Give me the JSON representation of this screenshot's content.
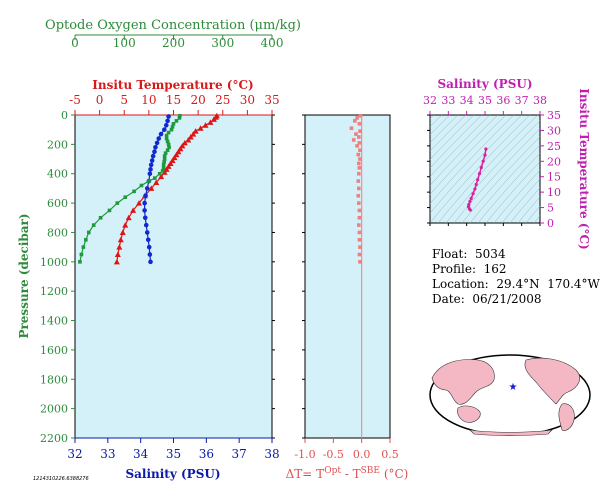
{
  "chart_data": [
    {
      "type": "line",
      "title": "",
      "ylabel": "Pressure (decibar)",
      "ylim": [
        2200,
        0
      ],
      "yticks": [
        0,
        200,
        400,
        600,
        800,
        1000,
        1200,
        1400,
        1600,
        1800,
        2000,
        2200
      ],
      "axes": {
        "oxygen": {
          "label": "Optode Oxygen Concentration (μm/kg)",
          "range": [
            0,
            400
          ],
          "ticks": [
            "0",
            "100",
            "200",
            "300",
            "400"
          ],
          "color": "#2e8b3c"
        },
        "temperature": {
          "label": "Insitu Temperature (°C)",
          "range": [
            -5,
            35
          ],
          "ticks": [
            "-5",
            "0",
            "5",
            "10",
            "15",
            "20",
            "25",
            "30",
            "35"
          ],
          "color": "#d41a1a"
        },
        "salinity": {
          "label": "Salinity (PSU)",
          "range": [
            32,
            38
          ],
          "ticks": [
            "32",
            "33",
            "34",
            "35",
            "36",
            "37",
            "38"
          ],
          "color": "#0a1aa8"
        }
      },
      "series": [
        {
          "name": "Temperature",
          "axis": "temperature",
          "color": "#e01414",
          "marker": "triangle",
          "points": [
            [
              23.8,
              5
            ],
            [
              23.6,
              15
            ],
            [
              23.2,
              30
            ],
            [
              22.5,
              50
            ],
            [
              21.5,
              70
            ],
            [
              20.5,
              90
            ],
            [
              19.5,
              110
            ],
            [
              19.0,
              130
            ],
            [
              18.5,
              150
            ],
            [
              18.0,
              170
            ],
            [
              17.3,
              190
            ],
            [
              16.8,
              210
            ],
            [
              16.4,
              230
            ],
            [
              16.0,
              250
            ],
            [
              15.6,
              270
            ],
            [
              15.2,
              290
            ],
            [
              14.8,
              310
            ],
            [
              14.4,
              330
            ],
            [
              14.0,
              350
            ],
            [
              13.6,
              370
            ],
            [
              13.2,
              390
            ],
            [
              12.5,
              420
            ],
            [
              11.5,
              460
            ],
            [
              10.5,
              500
            ],
            [
              9.2,
              550
            ],
            [
              8.0,
              600
            ],
            [
              6.8,
              650
            ],
            [
              5.9,
              700
            ],
            [
              5.2,
              750
            ],
            [
              4.7,
              800
            ],
            [
              4.3,
              850
            ],
            [
              4.0,
              900
            ],
            [
              3.7,
              950
            ],
            [
              3.5,
              1000
            ]
          ]
        },
        {
          "name": "Salinity",
          "axis": "salinity",
          "color": "#1428d0",
          "marker": "circle",
          "points": [
            [
              34.85,
              10
            ],
            [
              34.82,
              40
            ],
            [
              34.78,
              70
            ],
            [
              34.72,
              100
            ],
            [
              34.62,
              130
            ],
            [
              34.55,
              160
            ],
            [
              34.5,
              190
            ],
            [
              34.45,
              220
            ],
            [
              34.42,
              250
            ],
            [
              34.38,
              280
            ],
            [
              34.35,
              310
            ],
            [
              34.32,
              340
            ],
            [
              34.3,
              370
            ],
            [
              34.28,
              400
            ],
            [
              34.25,
              450
            ],
            [
              34.2,
              500
            ],
            [
              34.15,
              550
            ],
            [
              34.12,
              600
            ],
            [
              34.12,
              650
            ],
            [
              34.14,
              700
            ],
            [
              34.17,
              750
            ],
            [
              34.2,
              800
            ],
            [
              34.23,
              850
            ],
            [
              34.26,
              900
            ],
            [
              34.28,
              950
            ],
            [
              34.3,
              1000
            ]
          ]
        },
        {
          "name": "Oxygen",
          "axis": "oxygen",
          "color": "#1f9a3a",
          "marker": "square",
          "points": [
            [
              213,
              5
            ],
            [
              212,
              20
            ],
            [
              206,
              40
            ],
            [
              200,
              60
            ],
            [
              198,
              80
            ],
            [
              196,
              100
            ],
            [
              190,
              120
            ],
            [
              186,
              140
            ],
            [
              186,
              160
            ],
            [
              188,
              180
            ],
            [
              190,
              200
            ],
            [
              191,
              220
            ],
            [
              188,
              240
            ],
            [
              184,
              260
            ],
            [
              182,
              280
            ],
            [
              182,
              300
            ],
            [
              181,
              320
            ],
            [
              180,
              340
            ],
            [
              180,
              360
            ],
            [
              178,
              380
            ],
            [
              172,
              400
            ],
            [
              162,
              430
            ],
            [
              150,
              450
            ],
            [
              135,
              480
            ],
            [
              120,
              520
            ],
            [
              102,
              560
            ],
            [
              86,
              600
            ],
            [
              70,
              650
            ],
            [
              52,
              700
            ],
            [
              38,
              750
            ],
            [
              28,
              800
            ],
            [
              22,
              850
            ],
            [
              17,
              900
            ],
            [
              13,
              950
            ],
            [
              10,
              1000
            ]
          ]
        }
      ]
    },
    {
      "type": "scatter",
      "title": "",
      "xlabel": "ΔT= T^Opt - T^SBE (°C)",
      "xlim": [
        -1.0,
        0.5
      ],
      "xticks": [
        "-1.0",
        "-0.5",
        "0.0",
        "0.5"
      ],
      "color": "#f08080",
      "points": [
        [
          -0.02,
          5
        ],
        [
          -0.08,
          20
        ],
        [
          -0.12,
          40
        ],
        [
          -0.04,
          60
        ],
        [
          -0.18,
          90
        ],
        [
          -0.03,
          110
        ],
        [
          -0.1,
          130
        ],
        [
          -0.05,
          150
        ],
        [
          -0.14,
          170
        ],
        [
          -0.04,
          190
        ],
        [
          -0.08,
          210
        ],
        [
          -0.03,
          240
        ],
        [
          -0.06,
          270
        ],
        [
          -0.03,
          300
        ],
        [
          -0.05,
          330
        ],
        [
          -0.04,
          360
        ],
        [
          -0.05,
          400
        ],
        [
          -0.06,
          450
        ],
        [
          -0.05,
          500
        ],
        [
          -0.06,
          550
        ],
        [
          -0.05,
          600
        ],
        [
          -0.04,
          650
        ],
        [
          -0.04,
          700
        ],
        [
          -0.05,
          750
        ],
        [
          -0.04,
          800
        ],
        [
          -0.04,
          850
        ],
        [
          -0.03,
          900
        ],
        [
          -0.04,
          950
        ],
        [
          -0.03,
          1000
        ]
      ]
    },
    {
      "type": "scatter",
      "title": "",
      "xlabel": "Salinity (PSU)",
      "ylabel": "Insitu Temperature (°C)",
      "xlim": [
        32,
        38
      ],
      "ylim": [
        0,
        35
      ],
      "xticks": [
        "32",
        "33",
        "34",
        "35",
        "36",
        "37",
        "38"
      ],
      "yticks": [
        "0",
        "5",
        "10",
        "15",
        "20",
        "25",
        "30",
        "35"
      ],
      "color": "#d6249f",
      "points": [
        [
          35.05,
          24
        ],
        [
          35.0,
          22
        ],
        [
          34.9,
          20
        ],
        [
          34.8,
          18
        ],
        [
          34.7,
          16
        ],
        [
          34.6,
          14
        ],
        [
          34.52,
          12.5
        ],
        [
          34.45,
          11
        ],
        [
          34.35,
          9.5
        ],
        [
          34.25,
          8
        ],
        [
          34.18,
          7
        ],
        [
          34.12,
          6
        ],
        [
          34.1,
          5.3
        ],
        [
          34.15,
          4.6
        ],
        [
          34.2,
          4.2
        ]
      ]
    }
  ],
  "info": {
    "float": "Float:  5034",
    "profile": "Profile:  162",
    "location": "Location:  29.4°N  170.4°W",
    "date": "Date:  06/21/2008"
  },
  "footer": "1214310226.6388276"
}
